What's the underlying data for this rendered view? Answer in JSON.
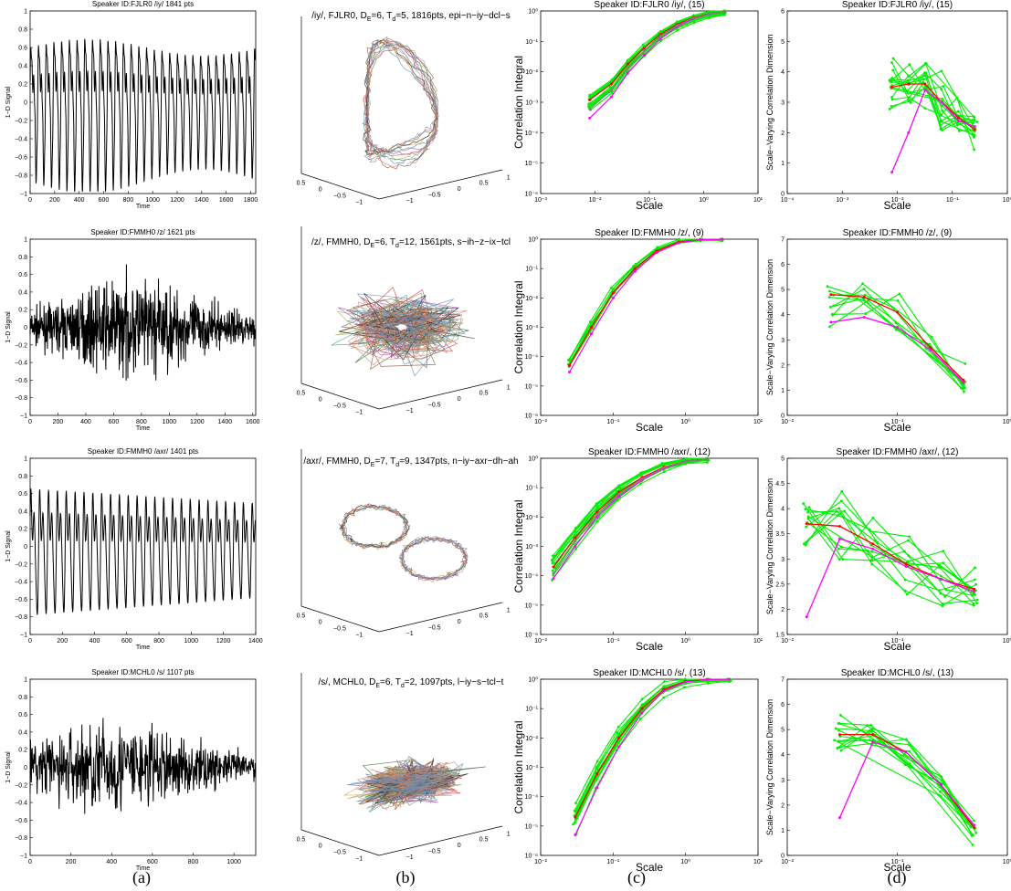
{
  "captions": [
    "(a)",
    "(b)",
    "(c)",
    "(d)"
  ],
  "chart_data": [
    {
      "id": "a1",
      "type": "line",
      "title": "Speaker ID:FJLR0  /iy/ 1841 pts",
      "xlabel": "Time",
      "ylabel": "1−D Signal",
      "xlim": [
        0,
        1841
      ],
      "ylim": [
        -1,
        1
      ],
      "xticks": [
        0,
        200,
        400,
        600,
        800,
        1000,
        1200,
        1400,
        1600,
        1800
      ],
      "yticks": [
        -1,
        -0.8,
        -0.6,
        -0.4,
        -0.2,
        0,
        0.2,
        0.4,
        0.6,
        0.8,
        1
      ]
    },
    {
      "id": "a2",
      "type": "line",
      "title": "Speaker ID:FMMH0  /z/ 1621 pts",
      "xlabel": "Time",
      "ylabel": "1−D Signal",
      "xlim": [
        0,
        1621
      ],
      "ylim": [
        -1,
        1
      ],
      "xticks": [
        0,
        200,
        400,
        600,
        800,
        1000,
        1200,
        1400,
        1600
      ],
      "yticks": [
        -1,
        -0.8,
        -0.6,
        -0.4,
        -0.2,
        0,
        0.2,
        0.4,
        0.6,
        0.8,
        1
      ]
    },
    {
      "id": "a3",
      "type": "line",
      "title": "Speaker ID:FMMH0  /axr/ 1401 pts",
      "xlabel": "Time",
      "ylabel": "1−D Signal",
      "xlim": [
        0,
        1401
      ],
      "ylim": [
        -1,
        1
      ],
      "xticks": [
        0,
        200,
        400,
        600,
        800,
        1000,
        1200,
        1400
      ],
      "yticks": [
        -1,
        -0.8,
        -0.6,
        -0.4,
        -0.2,
        0,
        0.2,
        0.4,
        0.6,
        0.8,
        1
      ]
    },
    {
      "id": "a4",
      "type": "line",
      "title": "Speaker ID:MCHL0  /s/ 1107 pts",
      "xlabel": "Time",
      "ylabel": "1−D Signal",
      "xlim": [
        0,
        1107
      ],
      "ylim": [
        -1,
        1
      ],
      "xticks": [
        0,
        200,
        400,
        600,
        800,
        1000
      ],
      "yticks": [
        -1,
        -0.8,
        -0.6,
        -0.4,
        -0.2,
        0,
        0.2,
        0.4,
        0.6,
        0.8,
        1
      ]
    },
    {
      "id": "b1",
      "type": "line",
      "subtype": "3d-trajectory",
      "title": "/iy/, FJLR0, Dₑ=6, Tₑ=5, 1816pts, epi−n−iy−dcl−s",
      "title_parts": {
        "a": "/iy/, FJLR0, D",
        "sub1": "E",
        "b": "=6, T",
        "sub2": "d",
        "c": "=5, 1816pts, epi−n−iy−dcl−s"
      },
      "ticks_left": [
        "0.5",
        "0",
        "−0.5",
        "−1"
      ],
      "ticks_right": [
        "1",
        "0.5",
        "0",
        "−0.5",
        "−1"
      ]
    },
    {
      "id": "b2",
      "type": "line",
      "subtype": "3d-trajectory",
      "title": "/z/, FMMH0, Dₑ=6, Tₑ=12, 1561pts, s−ih−z−ix−tcl",
      "title_parts": {
        "a": "/z/, FMMH0, D",
        "sub1": "E",
        "b": "=6, T",
        "sub2": "d",
        "c": "=12, 1561pts, s−ih−z−ix−tcl"
      },
      "ticks_left": [
        "0.5",
        "0",
        "−0.5",
        "−1"
      ],
      "ticks_right": [
        "1",
        "0.5",
        "0",
        "−0.5",
        "−1"
      ]
    },
    {
      "id": "b3",
      "type": "line",
      "subtype": "3d-trajectory",
      "title": "/axr/, FMMH0, Dₑ=7, Tₑ=9, 1347pts, n−iy−axr−dh−ah",
      "title_parts": {
        "a": "/axr/, FMMH0, D",
        "sub1": "E",
        "b": "=7, T",
        "sub2": "d",
        "c": "=9, 1347pts, n−iy−axr−dh−ah"
      },
      "ticks_left": [
        "0.5",
        "0",
        "−0.5",
        "−1"
      ],
      "ticks_right": [
        "1",
        "0.5",
        "0",
        "−0.5",
        "−1"
      ]
    },
    {
      "id": "b4",
      "type": "line",
      "subtype": "3d-trajectory",
      "title": "/s/, MCHL0, Dₑ=6, Tₑ=2, 1097pts, l−iy−s−tcl−t",
      "title_parts": {
        "a": "/s/, MCHL0, D",
        "sub1": "E",
        "b": "=6, T",
        "sub2": "d",
        "c": "=2, 1097pts, l−iy−s−tcl−t"
      },
      "ticks_left": [
        "0.5",
        "0",
        "−0.5",
        "−1"
      ],
      "ticks_right": [
        "1",
        "0.5",
        "0",
        "−0.5",
        "−1"
      ]
    },
    {
      "id": "c1",
      "type": "line",
      "scale": "log-log",
      "title": "Speaker ID:FJLR0  /iy/, (15)",
      "xlabel": "Scale",
      "ylabel": "Correlation Integral",
      "xlim": [
        0.001,
        10
      ],
      "ylim": [
        1e-06,
        1
      ],
      "x": [
        0.008,
        0.02,
        0.04,
        0.08,
        0.16,
        0.32,
        0.64,
        1.28,
        2.4
      ],
      "series_count": 15,
      "series": [
        {
          "color": "#ff0000",
          "y": [
            0.0012,
            0.004,
            0.018,
            0.06,
            0.17,
            0.36,
            0.6,
            0.82,
            0.95
          ]
        },
        {
          "color": "#ff00ff",
          "y": [
            0.0003,
            0.0015,
            0.009,
            0.035,
            0.12,
            0.3,
            0.55,
            0.79,
            0.94
          ]
        },
        {
          "color": "#808080",
          "y": [
            0.0006,
            0.0025,
            0.013,
            0.048,
            0.15,
            0.33,
            0.58,
            0.81,
            0.95
          ]
        }
      ]
    },
    {
      "id": "c2",
      "type": "line",
      "scale": "log-log",
      "title": "Speaker ID:FMMH0  /z/, (9)",
      "xlabel": "Scale",
      "ylabel": "Correlation Integral",
      "xlim": [
        0.01,
        10
      ],
      "ylim": [
        1e-06,
        1
      ],
      "x": [
        0.025,
        0.05,
        0.1,
        0.2,
        0.4,
        0.8,
        1.6,
        3.2
      ],
      "series_count": 9,
      "series": [
        {
          "color": "#ff0000",
          "y": [
            5e-05,
            0.001,
            0.015,
            0.1,
            0.4,
            0.8,
            0.97,
            1
          ]
        },
        {
          "color": "#ff00ff",
          "y": [
            3e-05,
            0.0006,
            0.01,
            0.08,
            0.35,
            0.75,
            0.96,
            1
          ]
        }
      ]
    },
    {
      "id": "c3",
      "type": "line",
      "scale": "log-log",
      "title": "Speaker ID:FMMH0  /axr/, (12)",
      "xlabel": "Scale",
      "ylabel": "Correlation Integral",
      "xlim": [
        0.01,
        10
      ],
      "ylim": [
        1e-06,
        1
      ],
      "x": [
        0.015,
        0.03,
        0.06,
        0.12,
        0.25,
        0.5,
        1,
        2
      ],
      "series_count": 12,
      "series": [
        {
          "color": "#ff0000",
          "y": [
            0.0002,
            0.002,
            0.015,
            0.07,
            0.22,
            0.5,
            0.8,
            0.95
          ]
        },
        {
          "color": "#ff00ff",
          "y": [
            8e-05,
            0.001,
            0.01,
            0.05,
            0.18,
            0.45,
            0.78,
            0.94
          ]
        },
        {
          "color": "#808080",
          "y": [
            0.00012,
            0.0015,
            0.012,
            0.06,
            0.2,
            0.48,
            0.79,
            0.95
          ]
        }
      ]
    },
    {
      "id": "c4",
      "type": "line",
      "scale": "log-log",
      "title": "Speaker ID:MCHL0  /s/, (13)",
      "xlabel": "Scale",
      "ylabel": "Correlation Integral",
      "xlim": [
        0.01,
        10
      ],
      "ylim": [
        1e-06,
        1
      ],
      "x": [
        0.03,
        0.06,
        0.12,
        0.25,
        0.5,
        1,
        2,
        4
      ],
      "series_count": 13,
      "series": [
        {
          "color": "#ff0000",
          "y": [
            2e-05,
            0.0006,
            0.01,
            0.1,
            0.45,
            0.85,
            0.98,
            1
          ]
        },
        {
          "color": "#ff00ff",
          "y": [
            5e-06,
            0.0002,
            0.005,
            0.07,
            0.4,
            0.82,
            0.97,
            1
          ]
        }
      ]
    },
    {
      "id": "d1",
      "type": "line",
      "scale": "semilog-x",
      "title": "Speaker ID:FJLR0  /iy/, (15)",
      "xlabel": "Scale",
      "ylabel": "Scale−Varying Correlation Dimension",
      "xlim": [
        0.0001,
        1
      ],
      "ylim": [
        0,
        6
      ],
      "x": [
        0.008,
        0.016,
        0.032,
        0.064,
        0.128,
        0.256
      ],
      "series_count": 15,
      "series": [
        {
          "color": "#ff0000",
          "y": [
            3.5,
            3.6,
            3.6,
            3.0,
            2.5,
            2.1
          ]
        },
        {
          "color": "#ff00ff",
          "y": [
            0.7,
            2.0,
            3.4,
            3.0,
            2.4,
            2.2
          ]
        }
      ]
    },
    {
      "id": "d2",
      "type": "line",
      "scale": "semilog-x",
      "title": "Speaker ID:FMMH0  /z/, (9)",
      "xlabel": "Scale",
      "ylabel": "Scale−Varying Correlation Dimension",
      "xlim": [
        0.01,
        1
      ],
      "ylim": [
        0,
        7
      ],
      "x": [
        0.025,
        0.05,
        0.1,
        0.2,
        0.4
      ],
      "series_count": 9,
      "series": [
        {
          "color": "#ff0000",
          "y": [
            4.8,
            4.7,
            4.1,
            2.7,
            1.4
          ]
        },
        {
          "color": "#ff00ff",
          "y": [
            3.7,
            3.9,
            3.5,
            2.6,
            1.3
          ]
        }
      ]
    },
    {
      "id": "d3",
      "type": "line",
      "scale": "semilog-x",
      "title": "Speaker ID:FMMH0  /axr/, (12)",
      "xlabel": "Scale",
      "ylabel": "Scale−Varying Correlation Dimension",
      "xlim": [
        0.01,
        1
      ],
      "ylim": [
        1.5,
        5
      ],
      "x": [
        0.015,
        0.03,
        0.06,
        0.12,
        0.25,
        0.5
      ],
      "series_count": 12,
      "series": [
        {
          "color": "#ff0000",
          "y": [
            3.7,
            3.65,
            3.3,
            2.9,
            2.6,
            2.4
          ]
        },
        {
          "color": "#ff00ff",
          "y": [
            1.85,
            3.4,
            3.2,
            2.85,
            2.6,
            2.35
          ]
        }
      ]
    },
    {
      "id": "d4",
      "type": "line",
      "scale": "semilog-x",
      "title": "Speaker ID:MCHL0  /s/, (13)",
      "xlabel": "Scale",
      "ylabel": "Scale−Varying Correlation Dimension",
      "xlim": [
        0.01,
        1
      ],
      "ylim": [
        0,
        7
      ],
      "x": [
        0.03,
        0.06,
        0.12,
        0.25,
        0.5
      ],
      "series_count": 13,
      "series": [
        {
          "color": "#ff0000",
          "y": [
            4.8,
            4.8,
            4.1,
            2.8,
            1.1
          ]
        },
        {
          "color": "#ff00ff",
          "y": [
            1.5,
            4.5,
            4.1,
            2.8,
            1.2
          ]
        }
      ]
    }
  ],
  "colors": {
    "signal": "#000000",
    "ensemble": "#00ee00",
    "mean": "#ff0000",
    "alt": "#ff00ff",
    "mid": "#808080"
  }
}
